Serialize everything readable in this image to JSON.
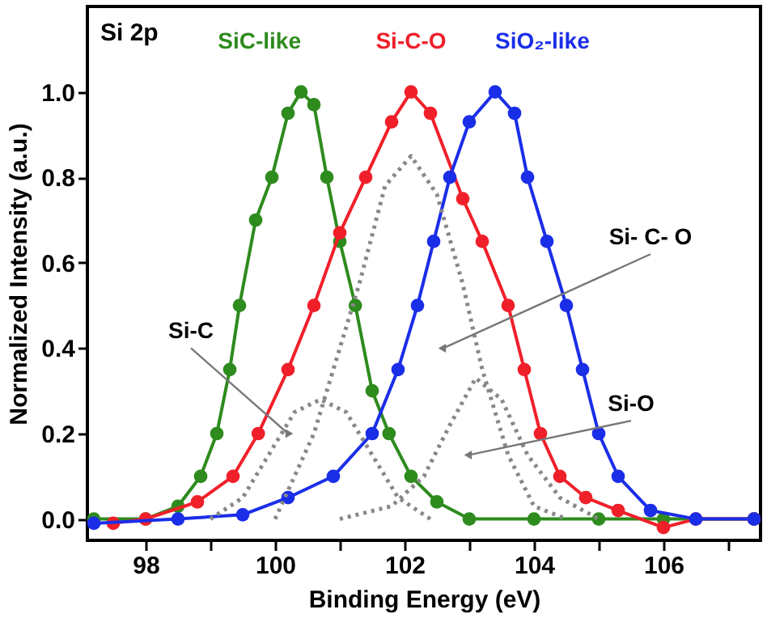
{
  "chart_data": {
    "type": "line",
    "xlabel": "Binding Energy (eV)",
    "ylabel": "Normalized Intensity (a.u.)",
    "annotations": [
      "Si 2p",
      {
        "text": "Si-C",
        "x": 100.2,
        "y": 0.2
      },
      {
        "text": "Si- C- O",
        "x": 102.6,
        "y": 0.4
      },
      {
        "text": "Si-O",
        "x": 103.0,
        "y": 0.15
      }
    ],
    "xlim": [
      97.1,
      107.5
    ],
    "ylim": [
      -0.05,
      1.2
    ],
    "xticks": [
      98,
      {
        "value": 99,
        "label": null
      },
      100,
      {
        "value": 101,
        "label": null
      },
      102,
      {
        "value": 103,
        "label": null
      },
      104,
      {
        "value": 105,
        "label": null
      },
      106,
      {
        "value": 107,
        "label": null
      }
    ],
    "yticks": [
      {
        "value": 0,
        "label": "0.0"
      },
      {
        "value": 0.2,
        "label": "0.2"
      },
      {
        "value": 0.4,
        "label": "0.4"
      },
      {
        "value": 0.6,
        "label": "0.6"
      },
      {
        "value": 0.8,
        "label": "0.8"
      },
      {
        "value": 1.0,
        "label": "1.0"
      }
    ],
    "grid": false,
    "series": [
      {
        "name": "SiC-like",
        "color": "#2e8b1e",
        "marker": "circle",
        "line_style": "solid",
        "x": [
          97.2,
          98.0,
          98.5,
          98.85,
          99.1,
          99.3,
          99.45,
          99.7,
          99.95,
          100.2,
          100.4,
          100.6,
          100.8,
          101.0,
          101.24,
          101.5,
          101.76,
          102.1,
          102.5,
          103.0,
          104.0,
          105.0,
          106.0,
          107.4
        ],
        "values": [
          0.0,
          0.0,
          0.03,
          0.1,
          0.2,
          0.35,
          0.5,
          0.7,
          0.8,
          0.95,
          1.0,
          0.97,
          0.8,
          0.65,
          0.5,
          0.3,
          0.2,
          0.1,
          0.04,
          0.0,
          0.0,
          0.0,
          0.0,
          0.0
        ]
      },
      {
        "name": "Si-C-O",
        "color": "#f0202a",
        "marker": "circle",
        "line_style": "solid",
        "x": [
          97.5,
          98.0,
          98.8,
          99.35,
          99.74,
          100.2,
          100.6,
          101.0,
          101.4,
          101.8,
          102.1,
          102.4,
          102.9,
          103.2,
          103.6,
          103.85,
          104.1,
          104.4,
          104.8,
          105.3,
          106.0,
          106.5,
          107.4
        ],
        "values": [
          -0.01,
          0.0,
          0.04,
          0.1,
          0.2,
          0.35,
          0.5,
          0.67,
          0.8,
          0.93,
          1.0,
          0.95,
          0.75,
          0.65,
          0.5,
          0.35,
          0.2,
          0.1,
          0.05,
          0.02,
          -0.02,
          0.0,
          0.0
        ]
      },
      {
        "name": "SiO₂-like",
        "color": "#1a2ee8",
        "marker": "circle",
        "line_style": "solid",
        "x": [
          97.2,
          98.5,
          99.5,
          100.2,
          100.9,
          101.5,
          101.9,
          102.2,
          102.45,
          102.7,
          103.0,
          103.4,
          103.7,
          103.9,
          104.2,
          104.5,
          104.75,
          105.0,
          105.3,
          105.8,
          106.5,
          107.4
        ],
        "values": [
          -0.01,
          0.0,
          0.01,
          0.05,
          0.1,
          0.2,
          0.35,
          0.5,
          0.65,
          0.8,
          0.93,
          1.0,
          0.95,
          0.8,
          0.65,
          0.5,
          0.35,
          0.2,
          0.1,
          0.02,
          0.0,
          0.0
        ]
      },
      {
        "color": "#888888",
        "marker": "none",
        "line_style": "dotted",
        "x": [
          99.0,
          99.5,
          99.9,
          100.3,
          100.7,
          101.1,
          101.5,
          101.9,
          102.4
        ],
        "values": [
          0.0,
          0.05,
          0.15,
          0.25,
          0.28,
          0.25,
          0.15,
          0.05,
          0.0
        ]
      },
      {
        "color": "#888888",
        "marker": "none",
        "line_style": "dotted",
        "x": [
          100.0,
          100.6,
          101.0,
          101.3,
          101.7,
          102.1,
          102.5,
          102.9,
          103.2,
          103.6,
          104.0,
          104.5
        ],
        "values": [
          0.0,
          0.2,
          0.4,
          0.55,
          0.78,
          0.85,
          0.76,
          0.55,
          0.35,
          0.15,
          0.03,
          0.0
        ]
      },
      {
        "color": "#888888",
        "marker": "none",
        "line_style": "dotted",
        "x": [
          101.0,
          101.8,
          102.3,
          102.7,
          103.1,
          103.5,
          103.9,
          104.4,
          105.0
        ],
        "values": [
          0.0,
          0.03,
          0.1,
          0.22,
          0.33,
          0.28,
          0.15,
          0.05,
          0.0
        ]
      }
    ]
  }
}
